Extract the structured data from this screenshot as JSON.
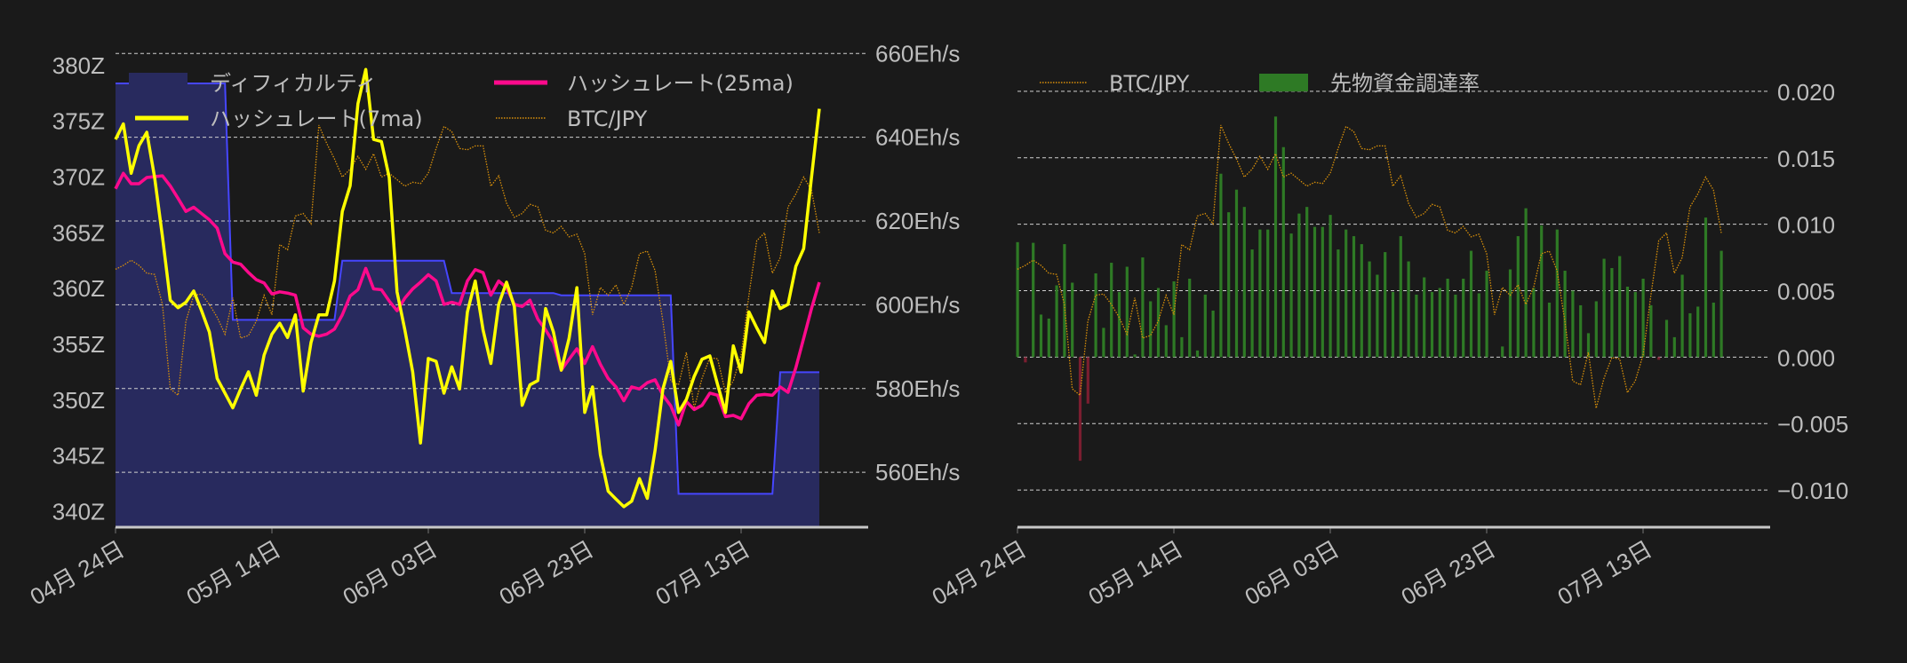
{
  "chart_data": [
    {
      "type": "line",
      "x_start_date": "04-24",
      "xtick_labels": [
        "04月 24日",
        "05月 14日",
        "06月 03日",
        "06月 23日",
        "07月 13日"
      ],
      "xtick_days": [
        0,
        20,
        40,
        60,
        80
      ],
      "left_axis": {
        "ticks": [
          "380Z",
          "375Z",
          "370Z",
          "365Z",
          "360Z",
          "355Z",
          "350Z",
          "345Z",
          "340Z"
        ],
        "values": [
          380,
          375,
          370,
          365,
          360,
          355,
          350,
          345,
          340
        ],
        "ylim": [
          338.6,
          382.7
        ]
      },
      "right_axis": {
        "ticks": [
          "660Eh/s",
          "640Eh/s",
          "620Eh/s",
          "600Eh/s",
          "580Eh/s",
          "560Eh/s"
        ],
        "values": [
          660,
          640,
          620,
          600,
          580,
          560
        ],
        "ylim": [
          546.9,
          664.3
        ]
      },
      "grid": true,
      "legend": {
        "placement": "top",
        "labels": {
          "difficulty": "ディフィカルティ",
          "hash7": "ハッシュレート(7ma)",
          "hash25": "ハッシュレート(25ma)",
          "btc": "BTC/JPY"
        }
      },
      "colors": {
        "difficulty_fill": "#282a5e",
        "difficulty_edge": "#4646ff",
        "hash7": "#ffff00",
        "hash25": "#ff0a8c",
        "btc": "#d9900a"
      },
      "series": {
        "difficulty": [
          378.4,
          378.4,
          378.4,
          378.4,
          378.4,
          378.4,
          378.4,
          378.4,
          378.4,
          378.4,
          378.4,
          378.4,
          378.4,
          378.4,
          378.4,
          357.2,
          357.2,
          357.2,
          357.2,
          357.2,
          357.2,
          357.2,
          357.2,
          357.2,
          357.2,
          357.2,
          357.2,
          357.2,
          357.2,
          362.5,
          362.5,
          362.5,
          362.5,
          362.5,
          362.5,
          362.5,
          362.5,
          362.5,
          362.5,
          362.5,
          362.5,
          362.5,
          362.5,
          359.6,
          359.6,
          359.6,
          359.6,
          359.6,
          359.6,
          359.6,
          359.6,
          359.6,
          359.6,
          359.6,
          359.6,
          359.6,
          359.6,
          359.4,
          359.4,
          359.4,
          359.4,
          359.4,
          359.4,
          359.4,
          359.4,
          359.4,
          359.4,
          359.4,
          359.4,
          359.4,
          359.4,
          359.4,
          341.6,
          341.6,
          341.6,
          341.6,
          341.6,
          341.6,
          341.6,
          341.6,
          341.6,
          341.6,
          341.6,
          341.6,
          341.6,
          352.5,
          352.5,
          352.5,
          352.5,
          352.5,
          352.5
        ],
        "hash7": [
          639.5,
          643.2,
          631.4,
          638,
          641.2,
          630.4,
          616.3,
          601.1,
          599.3,
          600.6,
          603.3,
          598.6,
          593.5,
          582.4,
          578.9,
          575.4,
          579.9,
          584,
          578.4,
          588,
          593,
          595.6,
          592.2,
          597.6,
          579.4,
          591,
          597.6,
          597.6,
          605.7,
          622.3,
          628.4,
          648,
          656.2,
          639.5,
          639,
          630.4,
          603.1,
          594,
          584,
          567,
          587.2,
          586.5,
          578.9,
          585.2,
          579.9,
          598.3,
          605.7,
          594,
          586,
          600.1,
          605.4,
          599.6,
          576,
          580.9,
          581.9,
          599.1,
          593.5,
          584.4,
          592,
          604.1,
          574.3,
          580.4,
          564.2,
          555.5,
          553.6,
          551.8,
          553.1,
          558.5,
          553.8,
          565.3,
          579.9,
          586.5,
          574.3,
          577.4,
          582.9,
          587,
          587.8,
          580.9,
          574.3,
          590.2,
          583.9,
          598.3,
          594.5,
          591,
          603.3,
          599.1,
          600.1,
          609.2,
          613.4,
          630.4,
          646.8
        ],
        "hash25": [
          627.7,
          631.4,
          628.9,
          628.9,
          630.4,
          630.6,
          630.8,
          628.4,
          625.4,
          622.3,
          623.3,
          621.8,
          620.3,
          618.3,
          612.2,
          610.2,
          609.7,
          607.7,
          606,
          605.2,
          602.6,
          603.1,
          602.8,
          602.3,
          594.5,
          593,
          592.5,
          593,
          594.2,
          597.6,
          602.1,
          603.6,
          608.7,
          603.8,
          603.6,
          600.9,
          598.6,
          601.6,
          603.8,
          605.4,
          607.2,
          605.7,
          600.1,
          600.6,
          600.1,
          605.7,
          608.4,
          607.7,
          602.3,
          605.7,
          604.1,
          600.1,
          599.6,
          601.1,
          596.6,
          594,
          591,
          584.4,
          587,
          589.5,
          586,
          590,
          585.8,
          582.4,
          580.4,
          577.1,
          580.4,
          579.9,
          581.4,
          582.1,
          578.4,
          575.9,
          571.3,
          576.9,
          575,
          576,
          578.9,
          578.4,
          573.3,
          573.6,
          572.8,
          576.4,
          578.4,
          578.6,
          578.4,
          580.4,
          579.1,
          585,
          592,
          599.1,
          605.4
        ],
        "btc_jpy": [
          9970000,
          10000000,
          10040000,
          10000000,
          9940000,
          9930000,
          9700000,
          9050000,
          9000000,
          9570000,
          9770000,
          9780000,
          9700000,
          9600000,
          9470000,
          9750000,
          9440000,
          9460000,
          9570000,
          9770000,
          9620000,
          10160000,
          10120000,
          10380000,
          10400000,
          10320000,
          11080000,
          10940000,
          10820000,
          10680000,
          10740000,
          10840000,
          10740000,
          10860000,
          10680000,
          10710000,
          10660000,
          10610000,
          10640000,
          10630000,
          10710000,
          10900000,
          11070000,
          11030000,
          10900000,
          10890000,
          10920000,
          10920000,
          10610000,
          10690000,
          10480000,
          10370000,
          10400000,
          10470000,
          10450000,
          10270000,
          10250000,
          10300000,
          10220000,
          10240000,
          10090000,
          9620000,
          9830000,
          9770000,
          9850000,
          9700000,
          9830000,
          10090000,
          10110000,
          9960000,
          9570000,
          9110000,
          9080000,
          9330000,
          8900000,
          9130000,
          9290000,
          9280000,
          9020000,
          9110000,
          9310000,
          9770000,
          10190000,
          10250000,
          9940000,
          10060000,
          10450000,
          10550000,
          10680000,
          10580000,
          10250000
        ]
      }
    },
    {
      "type": "bar",
      "x_start_date": "04-24",
      "xtick_labels": [
        "04月 24日",
        "05月 14日",
        "06月 03日",
        "06月 23日",
        "07月 13日"
      ],
      "xtick_days": [
        0,
        20,
        40,
        60,
        80
      ],
      "right_axis": {
        "ticks": [
          "0.020",
          "0.015",
          "0.010",
          "0.005",
          "0.000",
          "−0.005",
          "−0.010"
        ],
        "values": [
          0.02,
          0.015,
          0.01,
          0.005,
          0,
          -0.005,
          -0.01
        ],
        "ylim": [
          -0.0128,
          0.0242
        ]
      },
      "grid": true,
      "legend": {
        "placement": "top-left",
        "labels": {
          "btc": "BTC/JPY",
          "funding": "先物資金調達率"
        }
      },
      "colors": {
        "positive": "#2e7a25",
        "negative": "#7a1e30",
        "btc": "#d9900a"
      },
      "series": {
        "funding": [
          0.00865,
          -0.0004,
          0.0086,
          0.0032,
          0.0029,
          0.0054,
          0.0085,
          0.0056,
          -0.0078,
          -0.0035,
          0.0063,
          0.0022,
          0.0071,
          0.0049,
          0.0068,
          0.0002,
          0.0075,
          0.0042,
          0.0052,
          0.0024,
          0.0057,
          0.0015,
          0.0059,
          0.0005,
          0.0047,
          0.0035,
          0.0138,
          0.0109,
          0.0126,
          0.0113,
          0.0081,
          0.0096,
          0.0096,
          0.0181,
          0.0158,
          0.0093,
          0.0108,
          0.0113,
          0.0098,
          0.0098,
          0.0107,
          0.0081,
          0.0096,
          0.0091,
          0.0085,
          0.0072,
          0.0062,
          0.0079,
          0.0049,
          0.0091,
          0.0072,
          0.0047,
          0.006,
          0.0049,
          0.0052,
          0.0059,
          0.0047,
          0.0059,
          0.008,
          0.0048,
          0.0065,
          0,
          0.0008,
          0.0066,
          0.0091,
          0.0112,
          0.0052,
          0.0099,
          0.0041,
          0.0096,
          0.0065,
          0.005,
          0.0039,
          0.0018,
          0.0042,
          0.0074,
          0.0067,
          0.0076,
          0.0053,
          0.0049,
          0.0059,
          0.0039,
          -0.0002,
          0.0028,
          0.0015,
          0.0062,
          0.0033,
          0.0038,
          0.0105,
          0.0041,
          0.008
        ],
        "btc_jpy_ref": "same as chart 1"
      }
    }
  ]
}
